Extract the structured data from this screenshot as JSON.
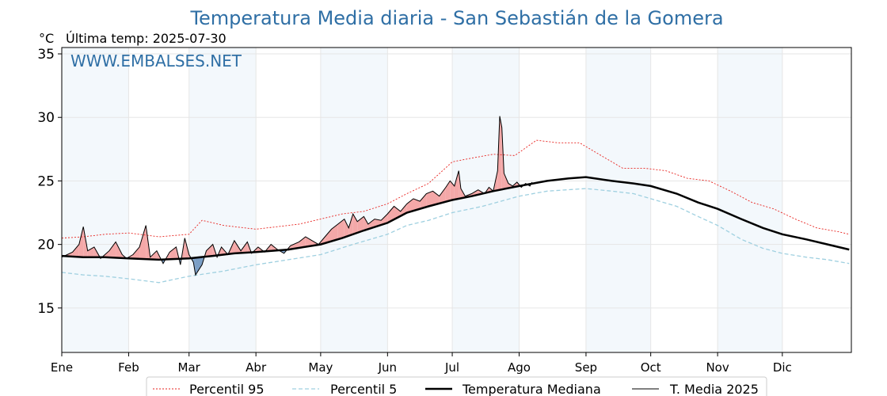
{
  "chart_data": {
    "type": "line",
    "title": "Temperatura Media diaria - San Sebastián de la Gomera",
    "unit_label": "°C",
    "last_temp_label": "Última temp: 2025-07-30",
    "watermark": "WWW.EMBALSES.NET",
    "ylim": [
      11.5,
      35.5
    ],
    "yticks": [
      15,
      20,
      25,
      30,
      35
    ],
    "xlim": [
      0,
      366
    ],
    "months": [
      {
        "label": "Ene",
        "start": 0
      },
      {
        "label": "Feb",
        "start": 31
      },
      {
        "label": "Mar",
        "start": 59
      },
      {
        "label": "Abr",
        "start": 90
      },
      {
        "label": "May",
        "start": 120
      },
      {
        "label": "Jun",
        "start": 151
      },
      {
        "label": "Jul",
        "start": 181
      },
      {
        "label": "Ago",
        "start": 212
      },
      {
        "label": "Sep",
        "start": 243
      },
      {
        "label": "Oct",
        "start": 273
      },
      {
        "label": "Nov",
        "start": 304
      },
      {
        "label": "Dic",
        "start": 334
      }
    ],
    "shaded_month_bands": [
      [
        0,
        31
      ],
      [
        59,
        90
      ],
      [
        120,
        151
      ],
      [
        181,
        212
      ],
      [
        243,
        273
      ],
      [
        304,
        334
      ]
    ],
    "grid": true,
    "colors": {
      "p95": "#e8231f",
      "p5": "#9fd0e0",
      "median": "#000000",
      "current": "#000000",
      "above_fill": "#f4a8a8",
      "below_fill": "#7b9fc6",
      "band_fill": "#f3f8fc",
      "title": "#2f6fa5"
    },
    "series": [
      {
        "name": "Percentil 95",
        "style": "dotted",
        "points": [
          [
            0,
            20.5
          ],
          [
            10,
            20.6
          ],
          [
            20,
            20.8
          ],
          [
            31,
            20.9
          ],
          [
            45,
            20.6
          ],
          [
            59,
            20.8
          ],
          [
            65,
            21.9
          ],
          [
            75,
            21.5
          ],
          [
            90,
            21.2
          ],
          [
            100,
            21.4
          ],
          [
            110,
            21.6
          ],
          [
            120,
            22.0
          ],
          [
            130,
            22.4
          ],
          [
            140,
            22.6
          ],
          [
            151,
            23.2
          ],
          [
            160,
            24.0
          ],
          [
            170,
            24.8
          ],
          [
            181,
            26.5
          ],
          [
            190,
            26.8
          ],
          [
            200,
            27.1
          ],
          [
            210,
            27.0
          ],
          [
            220,
            28.2
          ],
          [
            230,
            28.0
          ],
          [
            240,
            28.0
          ],
          [
            250,
            27.0
          ],
          [
            260,
            26.0
          ],
          [
            270,
            26.0
          ],
          [
            280,
            25.8
          ],
          [
            290,
            25.2
          ],
          [
            300,
            25.0
          ],
          [
            310,
            24.2
          ],
          [
            320,
            23.3
          ],
          [
            330,
            22.8
          ],
          [
            340,
            22.0
          ],
          [
            350,
            21.3
          ],
          [
            360,
            21.0
          ],
          [
            365,
            20.8
          ]
        ]
      },
      {
        "name": "Percentil 5",
        "style": "dashed",
        "points": [
          [
            0,
            17.8
          ],
          [
            10,
            17.6
          ],
          [
            20,
            17.5
          ],
          [
            31,
            17.3
          ],
          [
            45,
            17.0
          ],
          [
            59,
            17.5
          ],
          [
            75,
            17.9
          ],
          [
            90,
            18.4
          ],
          [
            105,
            18.8
          ],
          [
            120,
            19.2
          ],
          [
            135,
            20.0
          ],
          [
            151,
            20.8
          ],
          [
            160,
            21.5
          ],
          [
            170,
            21.9
          ],
          [
            181,
            22.5
          ],
          [
            195,
            23.0
          ],
          [
            212,
            23.8
          ],
          [
            225,
            24.2
          ],
          [
            243,
            24.4
          ],
          [
            255,
            24.2
          ],
          [
            265,
            24.0
          ],
          [
            273,
            23.6
          ],
          [
            285,
            23.0
          ],
          [
            295,
            22.2
          ],
          [
            304,
            21.5
          ],
          [
            315,
            20.4
          ],
          [
            325,
            19.7
          ],
          [
            334,
            19.3
          ],
          [
            345,
            19.0
          ],
          [
            355,
            18.8
          ],
          [
            365,
            18.5
          ]
        ]
      },
      {
        "name": "Temperatura Mediana",
        "style": "solid-bold",
        "points": [
          [
            0,
            19.1
          ],
          [
            10,
            19.0
          ],
          [
            20,
            19.0
          ],
          [
            31,
            18.9
          ],
          [
            45,
            18.8
          ],
          [
            59,
            18.9
          ],
          [
            70,
            19.1
          ],
          [
            80,
            19.3
          ],
          [
            90,
            19.4
          ],
          [
            105,
            19.6
          ],
          [
            120,
            20.0
          ],
          [
            130,
            20.5
          ],
          [
            140,
            21.1
          ],
          [
            151,
            21.7
          ],
          [
            160,
            22.5
          ],
          [
            170,
            23.0
          ],
          [
            181,
            23.5
          ],
          [
            190,
            23.8
          ],
          [
            200,
            24.2
          ],
          [
            212,
            24.6
          ],
          [
            225,
            25.0
          ],
          [
            235,
            25.2
          ],
          [
            243,
            25.3
          ],
          [
            255,
            25.0
          ],
          [
            265,
            24.8
          ],
          [
            273,
            24.6
          ],
          [
            285,
            24.0
          ],
          [
            295,
            23.3
          ],
          [
            304,
            22.8
          ],
          [
            315,
            22.0
          ],
          [
            325,
            21.3
          ],
          [
            334,
            20.8
          ],
          [
            345,
            20.4
          ],
          [
            355,
            20.0
          ],
          [
            365,
            19.6
          ]
        ]
      },
      {
        "name": "T. Media 2025",
        "style": "solid-thin",
        "points": [
          [
            0,
            19.0
          ],
          [
            5,
            19.4
          ],
          [
            8,
            20.0
          ],
          [
            10,
            21.4
          ],
          [
            12,
            19.5
          ],
          [
            15,
            19.8
          ],
          [
            18,
            18.9
          ],
          [
            22,
            19.5
          ],
          [
            25,
            20.2
          ],
          [
            28,
            19.2
          ],
          [
            30,
            18.9
          ],
          [
            33,
            19.2
          ],
          [
            36,
            19.8
          ],
          [
            39,
            21.5
          ],
          [
            41,
            19.0
          ],
          [
            44,
            19.5
          ],
          [
            47,
            18.5
          ],
          [
            50,
            19.4
          ],
          [
            53,
            19.8
          ],
          [
            55,
            18.4
          ],
          [
            57,
            20.5
          ],
          [
            59,
            19.2
          ],
          [
            61,
            18.6
          ],
          [
            62,
            17.6
          ],
          [
            65,
            18.4
          ],
          [
            67,
            19.5
          ],
          [
            70,
            20.0
          ],
          [
            72,
            19.0
          ],
          [
            74,
            19.8
          ],
          [
            77,
            19.2
          ],
          [
            80,
            20.3
          ],
          [
            83,
            19.5
          ],
          [
            86,
            20.2
          ],
          [
            88,
            19.3
          ],
          [
            91,
            19.8
          ],
          [
            94,
            19.4
          ],
          [
            97,
            20.0
          ],
          [
            100,
            19.6
          ],
          [
            103,
            19.3
          ],
          [
            106,
            19.9
          ],
          [
            110,
            20.2
          ],
          [
            113,
            20.6
          ],
          [
            116,
            20.3
          ],
          [
            119,
            20.0
          ],
          [
            122,
            20.6
          ],
          [
            125,
            21.2
          ],
          [
            128,
            21.6
          ],
          [
            131,
            22.0
          ],
          [
            133,
            21.3
          ],
          [
            135,
            22.4
          ],
          [
            137,
            21.8
          ],
          [
            140,
            22.2
          ],
          [
            142,
            21.6
          ],
          [
            145,
            22.0
          ],
          [
            148,
            21.9
          ],
          [
            151,
            22.4
          ],
          [
            154,
            23.0
          ],
          [
            157,
            22.6
          ],
          [
            160,
            23.2
          ],
          [
            163,
            23.6
          ],
          [
            166,
            23.4
          ],
          [
            169,
            24.0
          ],
          [
            172,
            24.2
          ],
          [
            175,
            23.8
          ],
          [
            178,
            24.5
          ],
          [
            180,
            25.0
          ],
          [
            182,
            24.6
          ],
          [
            184,
            25.8
          ],
          [
            185,
            24.4
          ],
          [
            187,
            23.8
          ],
          [
            190,
            24.0
          ],
          [
            193,
            24.3
          ],
          [
            196,
            24.0
          ],
          [
            198,
            24.5
          ],
          [
            200,
            24.2
          ],
          [
            202,
            25.8
          ],
          [
            203,
            30.1
          ],
          [
            204,
            29.2
          ],
          [
            205,
            25.6
          ],
          [
            207,
            24.8
          ],
          [
            209,
            24.6
          ],
          [
            211,
            24.9
          ],
          [
            213,
            24.5
          ],
          [
            215,
            24.8
          ],
          [
            217,
            24.6
          ],
          [
            218,
            24.9
          ]
        ]
      }
    ]
  }
}
